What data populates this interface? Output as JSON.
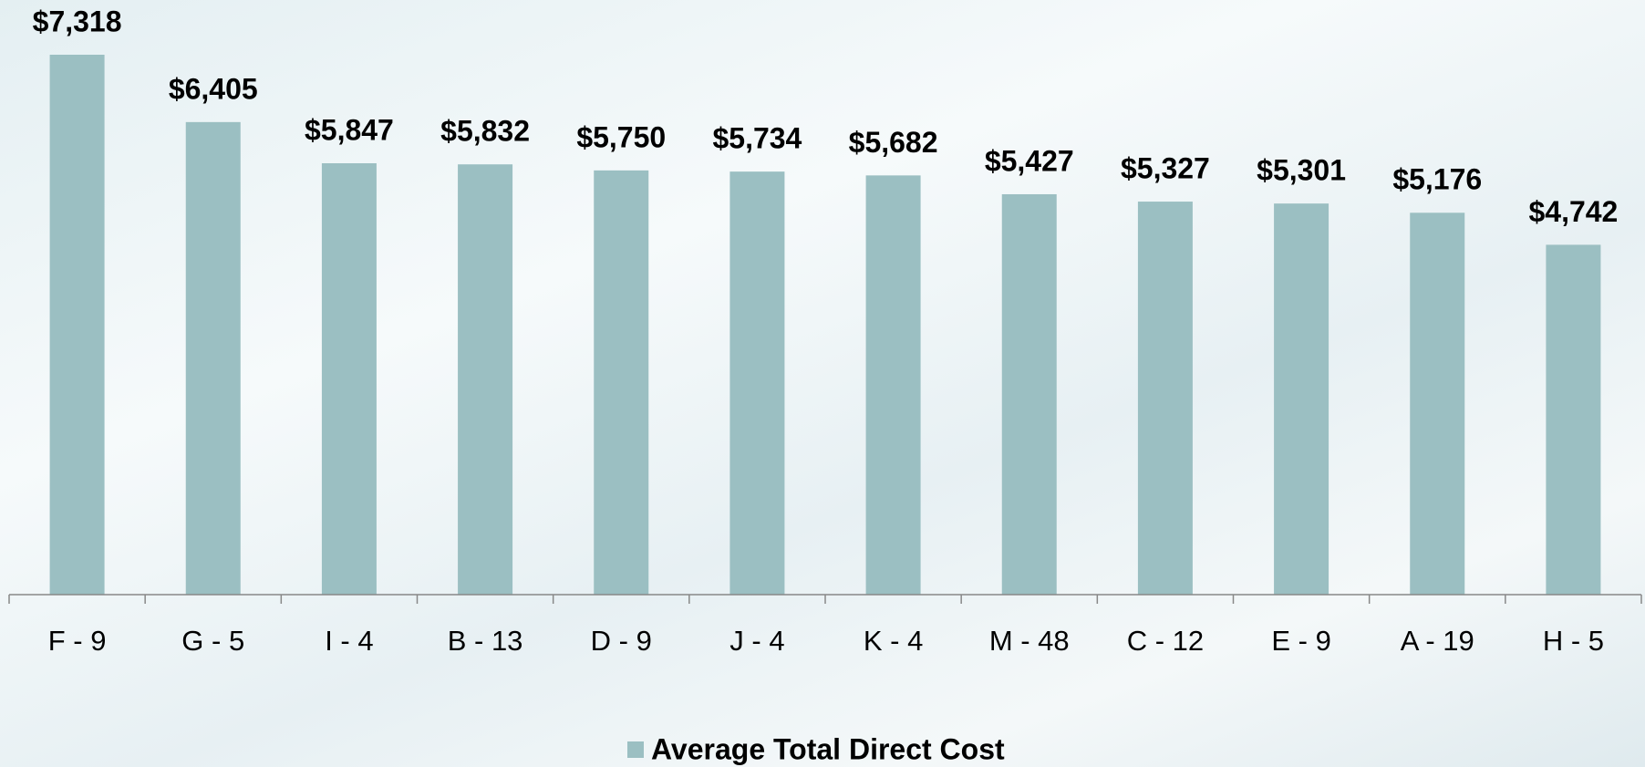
{
  "chart_data": {
    "type": "bar",
    "categories": [
      "F - 9",
      "G - 5",
      "I - 4",
      "B - 13",
      "D - 9",
      "J - 4",
      "K - 4",
      "M - 48",
      "C - 12",
      "E - 9",
      "A - 19",
      "H - 5"
    ],
    "series": [
      {
        "name": "Average Total Direct Cost",
        "color": "#9bbfc2",
        "values": [
          7318,
          6405,
          5847,
          5832,
          5750,
          5734,
          5682,
          5427,
          5327,
          5301,
          5176,
          4742
        ],
        "value_labels": [
          "$7,318",
          "$6,405",
          "$5,847",
          "$5,832",
          "$5,750",
          "$5,734",
          "$5,682",
          "$5,427",
          "$5,327",
          "$5,301",
          "$5,176",
          "$4,742"
        ]
      }
    ],
    "legend": "bottom"
  }
}
